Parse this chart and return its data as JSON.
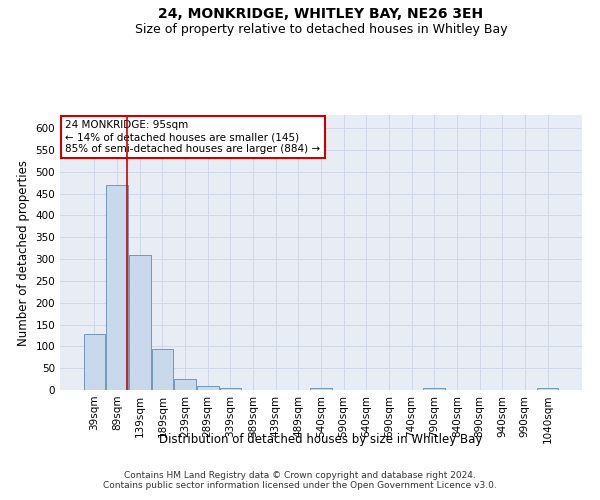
{
  "title": "24, MONKRIDGE, WHITLEY BAY, NE26 3EH",
  "subtitle": "Size of property relative to detached houses in Whitley Bay",
  "xlabel": "Distribution of detached houses by size in Whitley Bay",
  "ylabel": "Number of detached properties",
  "categories": [
    "39sqm",
    "89sqm",
    "139sqm",
    "189sqm",
    "239sqm",
    "289sqm",
    "339sqm",
    "389sqm",
    "439sqm",
    "489sqm",
    "540sqm",
    "590sqm",
    "640sqm",
    "690sqm",
    "740sqm",
    "790sqm",
    "840sqm",
    "890sqm",
    "940sqm",
    "990sqm",
    "1040sqm"
  ],
  "values": [
    128,
    470,
    310,
    95,
    25,
    10,
    5,
    0,
    0,
    0,
    5,
    0,
    0,
    0,
    0,
    5,
    0,
    0,
    0,
    0,
    5
  ],
  "bar_color": "#c9d9ec",
  "bar_edge_color": "#7098b8",
  "annotation_text": "24 MONKRIDGE: 95sqm\n← 14% of detached houses are smaller (145)\n85% of semi-detached houses are larger (884) →",
  "annotation_box_color": "#ffffff",
  "annotation_box_edge_color": "#cc0000",
  "vline_color": "#cc0000",
  "vline_x_index": 1.45,
  "ylim": [
    0,
    630
  ],
  "yticks": [
    0,
    50,
    100,
    150,
    200,
    250,
    300,
    350,
    400,
    450,
    500,
    550,
    600
  ],
  "grid_color": "#d0d8e8",
  "bg_color": "#e8edf5",
  "footer_text": "Contains HM Land Registry data © Crown copyright and database right 2024.\nContains public sector information licensed under the Open Government Licence v3.0.",
  "title_fontsize": 10,
  "subtitle_fontsize": 9,
  "xlabel_fontsize": 8.5,
  "ylabel_fontsize": 8.5,
  "tick_fontsize": 7.5,
  "annotation_fontsize": 7.5,
  "footer_fontsize": 6.5
}
